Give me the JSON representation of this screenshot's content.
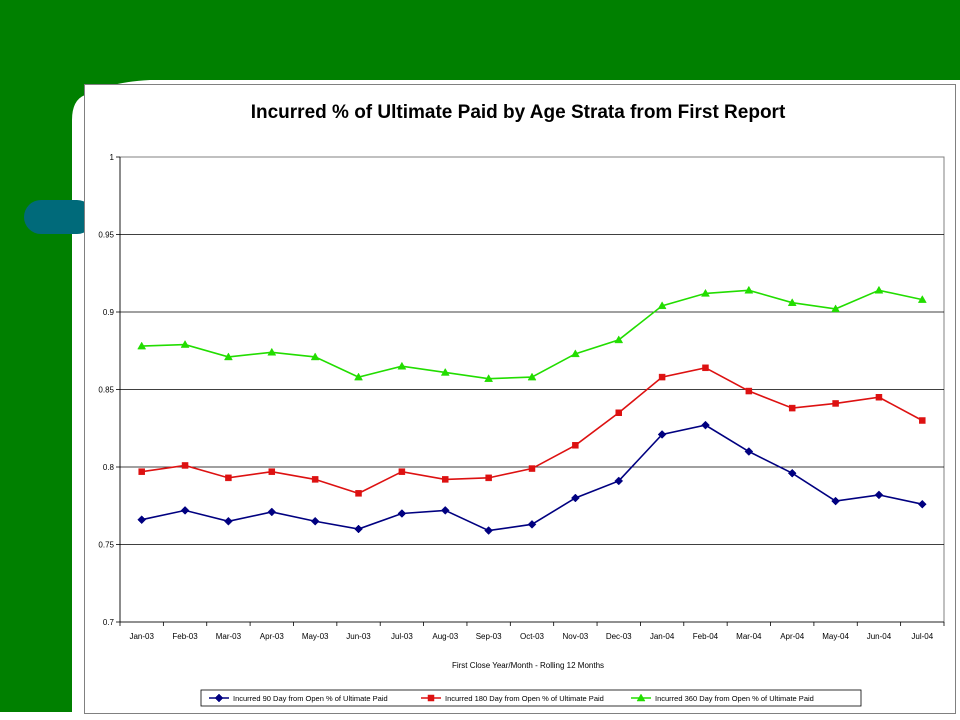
{
  "slide": {
    "green": "#008000",
    "stripe": "#006a7a"
  },
  "chart_data": {
    "type": "line",
    "title": "Incurred % of Ultimate Paid by Age Strata from First Report",
    "xlabel": "First Close Year/Month - Rolling 12 Months",
    "ylabel": "",
    "ylim": [
      0.7,
      1.0
    ],
    "yticks": [
      "0.7",
      "0.75",
      "0.8",
      "0.85",
      "0.9",
      "0.95",
      "1"
    ],
    "grid": true,
    "legend_position": "bottom",
    "categories": [
      "Jan-03",
      "Feb-03",
      "Mar-03",
      "Apr-03",
      "May-03",
      "Jun-03",
      "Jul-03",
      "Aug-03",
      "Sep-03",
      "Oct-03",
      "Nov-03",
      "Dec-03",
      "Jan-04",
      "Feb-04",
      "Mar-04",
      "Apr-04",
      "May-04",
      "Jun-04",
      "Jul-04"
    ],
    "series": [
      {
        "name": "Incurred 90 Day from Open % of Ultimate Paid",
        "color": "#000080",
        "marker": "diamond",
        "values": [
          0.766,
          0.772,
          0.765,
          0.771,
          0.765,
          0.76,
          0.77,
          0.772,
          0.759,
          0.763,
          0.78,
          0.791,
          0.821,
          0.827,
          0.81,
          0.796,
          0.778,
          0.782,
          0.776
        ]
      },
      {
        "name": "Incurred 180 Day from Open % of Ultimate Paid",
        "color": "#dd1111",
        "marker": "square",
        "values": [
          0.797,
          0.801,
          0.793,
          0.797,
          0.792,
          0.783,
          0.797,
          0.792,
          0.793,
          0.799,
          0.814,
          0.835,
          0.858,
          0.864,
          0.849,
          0.838,
          0.841,
          0.845,
          0.83
        ]
      },
      {
        "name": "Incurred 360 Day from Open % of Ultimate Paid",
        "color": "#22dd00",
        "marker": "triangle",
        "values": [
          0.878,
          0.879,
          0.871,
          0.874,
          0.871,
          0.858,
          0.865,
          0.861,
          0.857,
          0.858,
          0.873,
          0.882,
          0.904,
          0.912,
          0.914,
          0.906,
          0.902,
          0.914,
          0.908
        ]
      }
    ]
  }
}
